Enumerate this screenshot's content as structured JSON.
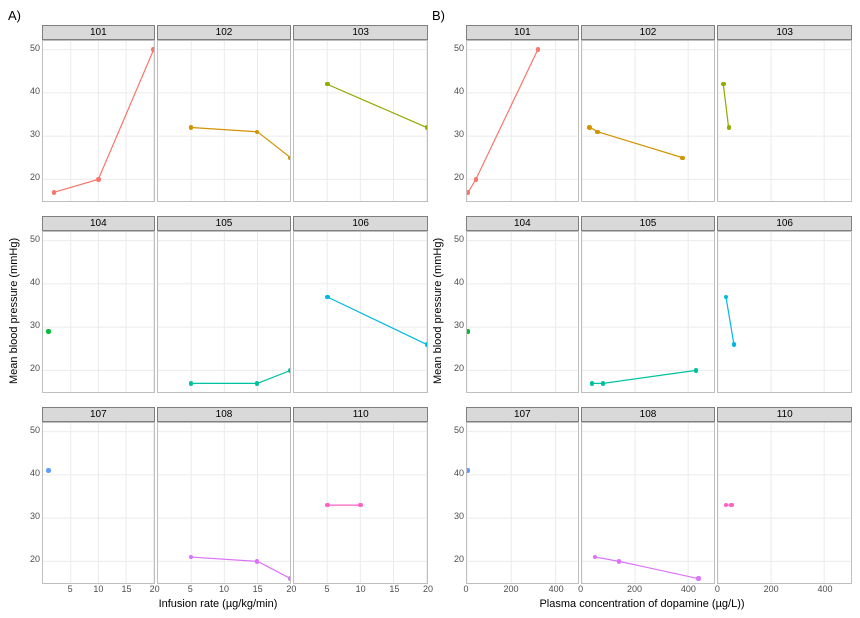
{
  "panels": [
    {
      "id": "A",
      "label": "A)",
      "x_label": "Infusion rate (µg/kg/min)",
      "y_label": "Mean blood pressure (mmHg)",
      "xlim": [
        0,
        20
      ],
      "xticks": [
        5,
        10,
        15,
        20
      ],
      "ylim": [
        15,
        52
      ],
      "yticks": [
        20,
        30,
        40,
        50
      ],
      "grid_color": "#ebebeb",
      "panel_border": "#bfbfbf",
      "strip_bg": "#d9d9d9",
      "tick_fontsize": 9,
      "label_fontsize": 11,
      "point_radius": 2.2,
      "line_width": 1.2,
      "facets": [
        {
          "title": "101",
          "color": "#f8766d",
          "x": [
            2,
            10,
            20
          ],
          "y": [
            17,
            20,
            50
          ]
        },
        {
          "title": "102",
          "color": "#d39200",
          "x": [
            5,
            15,
            20
          ],
          "y": [
            32,
            31,
            25
          ]
        },
        {
          "title": "103",
          "color": "#93aa00",
          "x": [
            5,
            20
          ],
          "y": [
            42,
            32
          ]
        },
        {
          "title": "104",
          "color": "#00ba38",
          "x": [
            1
          ],
          "y": [
            29
          ]
        },
        {
          "title": "105",
          "color": "#00c19f",
          "x": [
            5,
            15,
            20
          ],
          "y": [
            17,
            17,
            20
          ]
        },
        {
          "title": "106",
          "color": "#00b9e3",
          "x": [
            5,
            20
          ],
          "y": [
            37,
            26
          ]
        },
        {
          "title": "107",
          "color": "#619cff",
          "x": [
            1
          ],
          "y": [
            41
          ]
        },
        {
          "title": "108",
          "color": "#db72fb",
          "x": [
            5,
            15,
            20
          ],
          "y": [
            21,
            20,
            16
          ]
        },
        {
          "title": "110",
          "color": "#ff61c3",
          "x": [
            5,
            10
          ],
          "y": [
            33,
            33
          ]
        }
      ]
    },
    {
      "id": "B",
      "label": "B)",
      "x_label": "Plasma concentration of dopamine (µg/L))",
      "y_label": "Mean blood pressure (mmHg)",
      "xlim": [
        0,
        500
      ],
      "xticks": [
        0,
        200,
        400
      ],
      "ylim": [
        15,
        52
      ],
      "yticks": [
        20,
        30,
        40,
        50
      ],
      "grid_color": "#ebebeb",
      "panel_border": "#bfbfbf",
      "strip_bg": "#d9d9d9",
      "tick_fontsize": 9,
      "label_fontsize": 11,
      "point_radius": 2.2,
      "line_width": 1.2,
      "facets": [
        {
          "title": "101",
          "color": "#f8766d",
          "x": [
            5,
            40,
            320
          ],
          "y": [
            17,
            20,
            50
          ]
        },
        {
          "title": "102",
          "color": "#d39200",
          "x": [
            30,
            60,
            380
          ],
          "y": [
            32,
            31,
            25
          ]
        },
        {
          "title": "103",
          "color": "#93aa00",
          "x": [
            20,
            40
          ],
          "y": [
            42,
            32
          ]
        },
        {
          "title": "104",
          "color": "#00ba38",
          "x": [
            5
          ],
          "y": [
            29
          ]
        },
        {
          "title": "105",
          "color": "#00c19f",
          "x": [
            40,
            80,
            430
          ],
          "y": [
            17,
            17,
            20
          ]
        },
        {
          "title": "106",
          "color": "#00b9e3",
          "x": [
            30,
            60
          ],
          "y": [
            37,
            26
          ]
        },
        {
          "title": "107",
          "color": "#619cff",
          "x": [
            5
          ],
          "y": [
            41
          ]
        },
        {
          "title": "108",
          "color": "#db72fb",
          "x": [
            50,
            140,
            440
          ],
          "y": [
            21,
            20,
            16
          ]
        },
        {
          "title": "110",
          "color": "#ff61c3",
          "x": [
            30,
            50
          ],
          "y": [
            33,
            33
          ]
        }
      ]
    }
  ]
}
